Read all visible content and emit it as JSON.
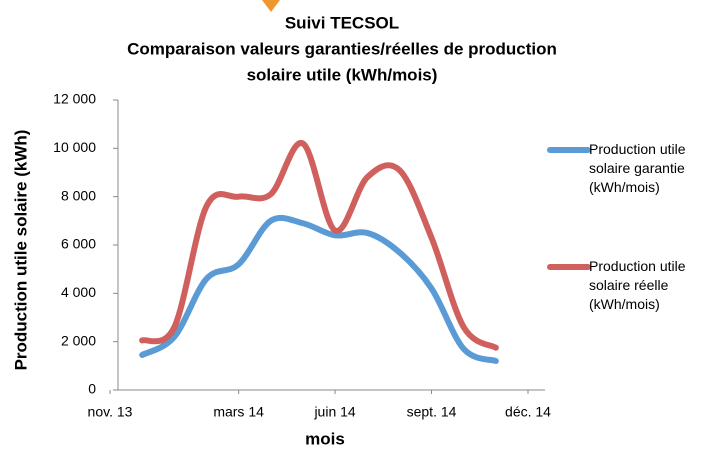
{
  "chart_data": {
    "type": "line",
    "title": [
      "Suivi TECSOL",
      "Comparaison valeurs garanties/réelles de production",
      "solaire utile (kWh/mois)"
    ],
    "x_label": "mois",
    "y_label": "Production utile solaire (kWh)",
    "x": [
      "2013-12",
      "2014-01",
      "2014-02",
      "2014-03",
      "2014-04",
      "2014-05",
      "2014-06",
      "2014-07",
      "2014-08",
      "2014-09",
      "2014-10",
      "2014-11"
    ],
    "xlim": [
      "2013-11",
      "2014-12"
    ],
    "xticks": [
      {
        "value": "2013-11",
        "label": "nov. 13"
      },
      {
        "value": "2014-03",
        "label": "mars 14"
      },
      {
        "value": "2014-06",
        "label": "juin 14"
      },
      {
        "value": "2014-09",
        "label": "sept. 14"
      },
      {
        "value": "2014-12",
        "label": "déc. 14"
      }
    ],
    "ylim": [
      0,
      12000
    ],
    "yticks": [
      0,
      {
        "value": 2000,
        "label": "2 000"
      },
      {
        "value": 4000,
        "label": "4 000"
      },
      {
        "value": 6000,
        "label": "6 000"
      },
      {
        "value": 8000,
        "label": "8 000"
      },
      {
        "value": 10000,
        "label": "10 000"
      },
      {
        "value": 12000,
        "label": "12 000"
      }
    ],
    "grid": false,
    "legend": "right",
    "series": [
      {
        "name": "Production utile solaire garantie (kWh/mois)",
        "color": "#5b9bd5",
        "values": [
          1450,
          2200,
          4600,
          5200,
          7000,
          6900,
          6400,
          6500,
          5700,
          4200,
          1700,
          1200
        ]
      },
      {
        "name": "Production utile solaire réelle (kWh/mois)",
        "color": "#d0605e",
        "values": [
          2050,
          2600,
          7600,
          8000,
          8100,
          10200,
          6600,
          8800,
          9100,
          6300,
          2600,
          1750
        ]
      }
    ]
  }
}
